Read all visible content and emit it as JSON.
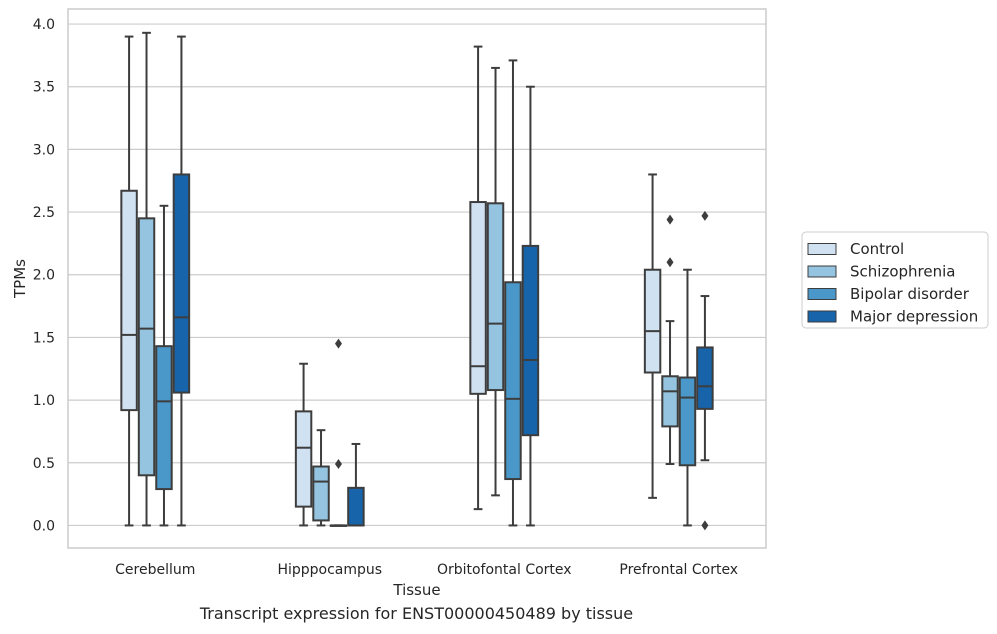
{
  "caption": "Transcript expression for ENST00000450489 by tissue",
  "chart_data": {
    "type": "boxplot",
    "xlabel": "Tissue",
    "ylabel": "TPMs",
    "ylim": [
      -0.18,
      4.12
    ],
    "yticks": [
      0.0,
      0.5,
      1.0,
      1.5,
      2.0,
      2.5,
      3.0,
      3.5,
      4.0
    ],
    "ytick_labels": [
      "0.0",
      "0.5",
      "1.0",
      "1.5",
      "2.0",
      "2.5",
      "3.0",
      "3.5",
      "4.0"
    ],
    "grid": "horizontal",
    "legend_position": "right",
    "categories": [
      "Cerebellum",
      "Hipppocampus",
      "Orbitofontal Cortex",
      "Prefrontal Cortex"
    ],
    "series": [
      {
        "name": "Control",
        "color": "#d0e1f2",
        "boxes": [
          {
            "whislo": 0.0,
            "q1": 0.92,
            "med": 1.52,
            "q3": 2.67,
            "whishi": 3.9,
            "fliers": []
          },
          {
            "whislo": 0.0,
            "q1": 0.15,
            "med": 0.62,
            "q3": 0.91,
            "whishi": 1.29,
            "fliers": []
          },
          {
            "whislo": 0.13,
            "q1": 1.05,
            "med": 1.27,
            "q3": 2.58,
            "whishi": 3.82,
            "fliers": []
          },
          {
            "whislo": 0.22,
            "q1": 1.22,
            "med": 1.55,
            "q3": 2.04,
            "whishi": 2.8,
            "fliers": []
          }
        ]
      },
      {
        "name": "Schizophrenia",
        "color": "#94c4df",
        "boxes": [
          {
            "whislo": 0.0,
            "q1": 0.4,
            "med": 1.57,
            "q3": 2.45,
            "whishi": 3.93,
            "fliers": []
          },
          {
            "whislo": 0.0,
            "q1": 0.04,
            "med": 0.35,
            "q3": 0.47,
            "whishi": 0.76,
            "fliers": []
          },
          {
            "whislo": 0.24,
            "q1": 1.08,
            "med": 1.61,
            "q3": 2.57,
            "whishi": 3.65,
            "fliers": []
          },
          {
            "whislo": 0.49,
            "q1": 0.79,
            "med": 1.07,
            "q3": 1.19,
            "whishi": 1.63,
            "fliers": [
              2.1,
              2.44
            ]
          }
        ]
      },
      {
        "name": "Bipolar disorder",
        "color": "#4a98c9",
        "boxes": [
          {
            "whislo": 0.0,
            "q1": 0.29,
            "med": 0.99,
            "q3": 1.43,
            "whishi": 2.55,
            "fliers": []
          },
          {
            "whislo": 0.0,
            "q1": 0.0,
            "med": 0.0,
            "q3": 0.0,
            "whishi": 0.0,
            "fliers": [
              0.49,
              1.45
            ]
          },
          {
            "whislo": 0.0,
            "q1": 0.37,
            "med": 1.01,
            "q3": 1.94,
            "whishi": 3.71,
            "fliers": []
          },
          {
            "whislo": 0.0,
            "q1": 0.48,
            "med": 1.02,
            "q3": 1.18,
            "whishi": 2.04,
            "fliers": []
          }
        ]
      },
      {
        "name": "Major depression",
        "color": "#1764ab",
        "boxes": [
          {
            "whislo": 0.0,
            "q1": 1.06,
            "med": 1.66,
            "q3": 2.8,
            "whishi": 3.9,
            "fliers": []
          },
          {
            "whislo": 0.0,
            "q1": 0.0,
            "med": 0.0,
            "q3": 0.3,
            "whishi": 0.65,
            "fliers": []
          },
          {
            "whislo": 0.0,
            "q1": 0.72,
            "med": 1.32,
            "q3": 2.23,
            "whishi": 3.5,
            "fliers": []
          },
          {
            "whislo": 0.52,
            "q1": 0.93,
            "med": 1.11,
            "q3": 1.42,
            "whishi": 1.83,
            "fliers": [
              0.0,
              2.47
            ]
          }
        ]
      }
    ]
  }
}
